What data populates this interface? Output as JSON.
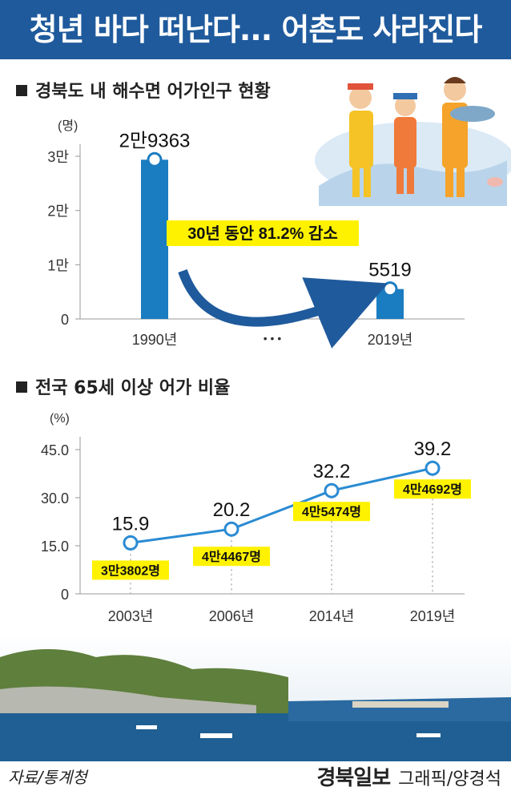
{
  "banner_title": "청년 바다 떠난다... 어촌도 사라진다",
  "section1_title": "경북도 내 해수면 어가인구 현황",
  "section2_title": "전국 65세 이상 어가 비율",
  "source": "자료/통계청",
  "publisher": "경북일보",
  "credit": "그래픽/양경석",
  "colors": {
    "banner": "#1f5a9c",
    "bar": "#1a7cc1",
    "line": "#2a8bd3",
    "highlight": "#fff200",
    "arrow": "#1f5a9c"
  },
  "chart_data": [
    {
      "type": "bar",
      "unit": "(명)",
      "categories": [
        "1990년",
        "2019년"
      ],
      "values": [
        29363,
        5519
      ],
      "value_labels": [
        "2만9363",
        "5519"
      ],
      "separator": "• • •",
      "yticks": [
        "0",
        "1만",
        "2만",
        "3만"
      ],
      "ytick_values": [
        0,
        10000,
        20000,
        30000
      ],
      "ylim": [
        0,
        30000
      ],
      "annotation": "30년 동안 81.2% 감소"
    },
    {
      "type": "line",
      "unit": "(%)",
      "categories": [
        "2003년",
        "2006년",
        "2014년",
        "2019년"
      ],
      "values": [
        15.9,
        20.2,
        32.2,
        39.2
      ],
      "value_labels": [
        "15.9",
        "20.2",
        "32.2",
        "39.2"
      ],
      "household_labels": [
        "3만3802명",
        "4만4467명",
        "4만5474명",
        "4만4692명"
      ],
      "yticks": [
        "0",
        "15.0",
        "30.0",
        "45.0"
      ],
      "ytick_values": [
        0,
        15,
        30,
        45
      ],
      "ylim": [
        0,
        45
      ],
      "grid": false
    }
  ]
}
